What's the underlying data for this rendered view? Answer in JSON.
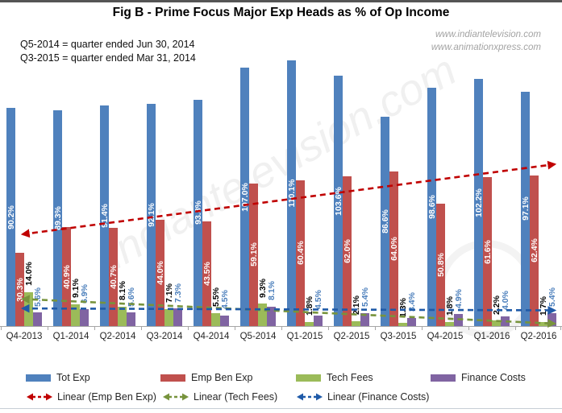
{
  "annotations": {
    "line1": "Q5-2014 = quarter ended Jun 30, 2014",
    "line2": "Q3-2015 = quarter ended Mar 31, 2014"
  },
  "watermark": {
    "line1": "www.indiantelevision.com",
    "line2": "www.animationxpress.com",
    "diagonal": "indiantelevision.com"
  },
  "colors": {
    "tot_exp": "#4F81BD",
    "emp_ben_exp": "#C0504D",
    "tech_fees": "#9BBB59",
    "finance_costs": "#8064A2",
    "trend_emp_ben": "#C00000",
    "trend_tech_fees": "#77933C",
    "trend_finance": "#1F5AA8",
    "finance_label_text": "#4A7EBB",
    "axis": "#A6A6A6"
  },
  "chart_data": {
    "type": "bar",
    "title": "Fig B - Prime Focus Major Exp Heads as % of Op Income",
    "categories": [
      "Q4-2013",
      "Q1-2014",
      "Q2-2014",
      "Q3-2014",
      "Q4-2014",
      "Q5-2014",
      "Q1-2015",
      "Q2-2015",
      "Q3-2015",
      "Q4-2015",
      "Q1-2016",
      "Q2-2016"
    ],
    "series": [
      {
        "name": "Tot Exp",
        "color": "#4F81BD",
        "label_color": "#FFFFFF",
        "label_placement": "inside",
        "values": [
          90.2,
          89.3,
          91.4,
          92.1,
          93.8,
          107.0,
          110.1,
          103.6,
          86.6,
          98.6,
          102.2,
          97.1
        ]
      },
      {
        "name": "Emp Ben Exp",
        "color": "#C0504D",
        "label_color": "#FFFFFF",
        "label_placement": "inside",
        "values": [
          30.3,
          40.9,
          40.7,
          44.0,
          43.5,
          59.1,
          60.4,
          62.0,
          64.0,
          50.8,
          61.6,
          62.4
        ]
      },
      {
        "name": "Tech Fees",
        "color": "#9BBB59",
        "label_color": "#000000",
        "label_placement": "outside",
        "values": [
          14.0,
          9.1,
          8.1,
          7.1,
          5.5,
          9.3,
          1.8,
          2.1,
          1.3,
          1.8,
          2.2,
          1.7
        ]
      },
      {
        "name": "Finance Costs",
        "color": "#8064A2",
        "label_color": "#4A7EBB",
        "label_placement": "outside",
        "values": [
          5.6,
          6.9,
          5.6,
          7.3,
          4.5,
          8.1,
          4.5,
          5.4,
          3.4,
          4.9,
          4.0,
          5.4
        ]
      }
    ],
    "trendlines": [
      {
        "name": "Linear (Emp Ben Exp)",
        "color": "#C00000",
        "start_value": 38.0,
        "end_value": 67.0
      },
      {
        "name": "Linear (Tech Fees)",
        "color": "#77933C",
        "start_value": 11.2,
        "end_value": 1.0
      },
      {
        "name": "Linear (Finance Costs)",
        "color": "#1F5AA8",
        "start_value": 7.3,
        "end_value": 6.5
      }
    ],
    "value_suffix": "%",
    "ylim": [
      0,
      115
    ],
    "gridlines": false,
    "legend_position": "bottom",
    "data_labels_rotated": true
  }
}
